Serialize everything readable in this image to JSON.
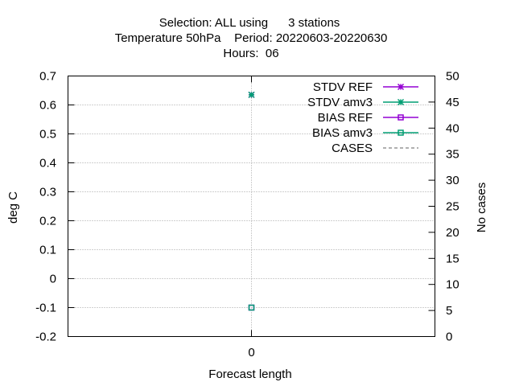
{
  "chart_data": {
    "type": "scatter",
    "title": {
      "line1": "Selection: ALL using      3 stations",
      "line2": "Temperature 50hPa    Period: 20220603-20220630",
      "line3": "Hours:  06"
    },
    "xlabel": "Forecast length",
    "ylabel": "deg C",
    "y2label": "No cases",
    "x_ticks": [
      "0"
    ],
    "xlim": [
      -1,
      1
    ],
    "ylim": [
      -0.2,
      0.7
    ],
    "y_ticks": [
      "0.7",
      "0.6",
      "0.5",
      "0.4",
      "0.3",
      "0.2",
      "0.1",
      "0",
      "-0.1",
      "-0.2"
    ],
    "y2lim": [
      0,
      50
    ],
    "y2_ticks": [
      "50",
      "45",
      "40",
      "35",
      "30",
      "25",
      "20",
      "15",
      "10",
      "5",
      "0"
    ],
    "grid": true,
    "legend_position": "top-right",
    "series": [
      {
        "name": "STDV REF",
        "color": "#9400d3",
        "marker": "star",
        "x": [
          0
        ],
        "y": [
          0.635
        ]
      },
      {
        "name": "STDV amv3",
        "color": "#009e73",
        "marker": "star",
        "x": [
          0
        ],
        "y": [
          0.635
        ]
      },
      {
        "name": "BIAS REF",
        "color": "#9400d3",
        "marker": "square",
        "x": [
          0
        ],
        "y": [
          -0.1
        ]
      },
      {
        "name": "BIAS amv3",
        "color": "#009e73",
        "marker": "square",
        "x": [
          0
        ],
        "y": [
          -0.1
        ]
      },
      {
        "name": "CASES",
        "color": "#808080",
        "marker": "none",
        "dashed": true,
        "x": [
          0
        ],
        "y2": [
          0
        ]
      }
    ]
  }
}
